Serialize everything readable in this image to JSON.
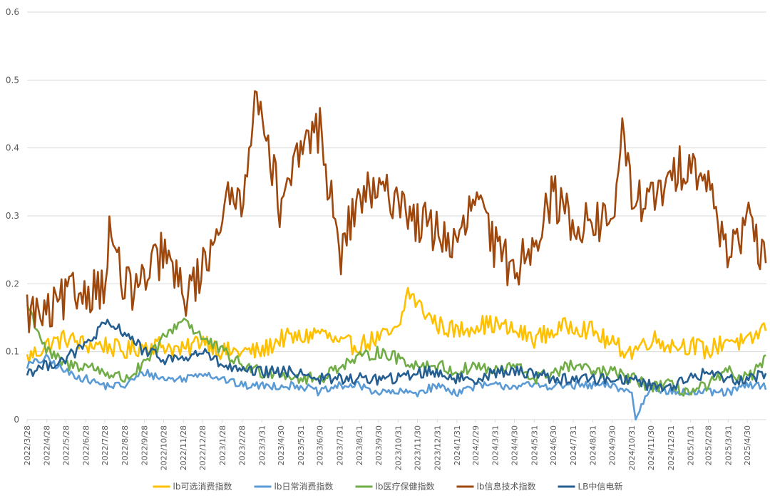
{
  "chart_data": {
    "type": "line",
    "title": "",
    "xlabel": "",
    "ylabel": "",
    "ylim": [
      0,
      0.6
    ],
    "y_ticks": [
      "0",
      "0.1",
      "0.2",
      "0.3",
      "0.4",
      "0.5",
      "0.6"
    ],
    "grid": true,
    "legend_position": "bottom",
    "x_start": "2022/3/28",
    "x_end": "2025/5/30",
    "x_ticks": [
      "2022/3/28",
      "2022/4/28",
      "2022/5/28",
      "2022/6/28",
      "2022/7/28",
      "2022/8/28",
      "2022/9/28",
      "2022/10/28",
      "2022/11/28",
      "2022/12/28",
      "2023/1/28",
      "2023/2/28",
      "2023/3/31",
      "2023/4/30",
      "2023/5/31",
      "2023/6/30",
      "2023/7/31",
      "2023/8/31",
      "2023/9/30",
      "2023/10/31",
      "2023/11/30",
      "2023/12/31",
      "2024/1/31",
      "2024/2/29",
      "2024/3/31",
      "2024/4/30",
      "2024/5/31",
      "2024/6/30",
      "2024/7/31",
      "2024/8/31",
      "2024/9/30",
      "2024/10/31",
      "2024/11/30",
      "2024/12/31",
      "2025/1/31",
      "2025/2/28",
      "2025/3/31",
      "2025/4/30"
    ],
    "series": [
      {
        "name": "lb可选消费指数",
        "color": "#FFC000",
        "points": [
          [
            "2022/3/28",
            0.09
          ],
          [
            "2022/4/28",
            0.11
          ],
          [
            "2022/5/28",
            0.12
          ],
          [
            "2022/6/28",
            0.11
          ],
          [
            "2022/7/28",
            0.11
          ],
          [
            "2022/8/28",
            0.1
          ],
          [
            "2022/9/28",
            0.11
          ],
          [
            "2022/10/28",
            0.11
          ],
          [
            "2022/11/28",
            0.1
          ],
          [
            "2022/12/28",
            0.12
          ],
          [
            "2023/1/28",
            0.1
          ],
          [
            "2023/2/28",
            0.1
          ],
          [
            "2023/3/31",
            0.1
          ],
          [
            "2023/4/30",
            0.12
          ],
          [
            "2023/5/31",
            0.12
          ],
          [
            "2023/6/30",
            0.13
          ],
          [
            "2023/7/31",
            0.11
          ],
          [
            "2023/8/31",
            0.11
          ],
          [
            "2023/9/30",
            0.12
          ],
          [
            "2023/10/31",
            0.13
          ],
          [
            "2023/11/15",
            0.19
          ],
          [
            "2023/11/30",
            0.17
          ],
          [
            "2023/12/31",
            0.14
          ],
          [
            "2024/1/31",
            0.13
          ],
          [
            "2024/2/29",
            0.14
          ],
          [
            "2024/3/31",
            0.14
          ],
          [
            "2024/4/30",
            0.13
          ],
          [
            "2024/5/31",
            0.12
          ],
          [
            "2024/6/30",
            0.13
          ],
          [
            "2024/7/31",
            0.14
          ],
          [
            "2024/8/31",
            0.13
          ],
          [
            "2024/9/30",
            0.11
          ],
          [
            "2024/10/31",
            0.1
          ],
          [
            "2024/11/30",
            0.12
          ],
          [
            "2024/12/31",
            0.11
          ],
          [
            "2025/1/31",
            0.11
          ],
          [
            "2025/2/28",
            0.1
          ],
          [
            "2025/3/31",
            0.12
          ],
          [
            "2025/4/30",
            0.11
          ],
          [
            "2025/5/30",
            0.14
          ]
        ]
      },
      {
        "name": "lb日常消费指数",
        "color": "#5B9BD5",
        "points": [
          [
            "2022/3/28",
            0.08
          ],
          [
            "2022/4/28",
            0.09
          ],
          [
            "2022/5/28",
            0.07
          ],
          [
            "2022/6/28",
            0.06
          ],
          [
            "2022/7/28",
            0.05
          ],
          [
            "2022/8/28",
            0.05
          ],
          [
            "2022/9/28",
            0.07
          ],
          [
            "2022/10/28",
            0.06
          ],
          [
            "2022/11/28",
            0.06
          ],
          [
            "2022/12/28",
            0.07
          ],
          [
            "2023/1/28",
            0.06
          ],
          [
            "2023/2/28",
            0.05
          ],
          [
            "2023/3/31",
            0.05
          ],
          [
            "2023/4/30",
            0.05
          ],
          [
            "2023/5/31",
            0.05
          ],
          [
            "2023/6/30",
            0.04
          ],
          [
            "2023/7/31",
            0.05
          ],
          [
            "2023/8/31",
            0.05
          ],
          [
            "2023/9/30",
            0.04
          ],
          [
            "2023/10/31",
            0.04
          ],
          [
            "2023/11/30",
            0.04
          ],
          [
            "2023/12/31",
            0.05
          ],
          [
            "2024/1/31",
            0.04
          ],
          [
            "2024/2/29",
            0.05
          ],
          [
            "2024/3/31",
            0.05
          ],
          [
            "2024/4/30",
            0.05
          ],
          [
            "2024/5/31",
            0.05
          ],
          [
            "2024/6/30",
            0.05
          ],
          [
            "2024/7/31",
            0.05
          ],
          [
            "2024/8/31",
            0.05
          ],
          [
            "2024/9/30",
            0.05
          ],
          [
            "2024/10/31",
            0.04
          ],
          [
            "2024/11/5",
            0.0
          ],
          [
            "2024/11/30",
            0.05
          ],
          [
            "2024/12/31",
            0.04
          ],
          [
            "2025/1/31",
            0.04
          ],
          [
            "2025/2/28",
            0.04
          ],
          [
            "2025/3/31",
            0.04
          ],
          [
            "2025/4/30",
            0.05
          ],
          [
            "2025/5/30",
            0.05
          ]
        ]
      },
      {
        "name": "lb医疗保健指数",
        "color": "#70AD47",
        "points": [
          [
            "2022/3/28",
            0.17
          ],
          [
            "2022/4/28",
            0.1
          ],
          [
            "2022/5/28",
            0.08
          ],
          [
            "2022/6/28",
            0.08
          ],
          [
            "2022/7/28",
            0.07
          ],
          [
            "2022/8/28",
            0.06
          ],
          [
            "2022/9/28",
            0.08
          ],
          [
            "2022/10/28",
            0.12
          ],
          [
            "2022/11/28",
            0.15
          ],
          [
            "2022/12/28",
            0.12
          ],
          [
            "2023/1/28",
            0.1
          ],
          [
            "2023/2/28",
            0.08
          ],
          [
            "2023/3/31",
            0.07
          ],
          [
            "2023/4/30",
            0.07
          ],
          [
            "2023/5/31",
            0.06
          ],
          [
            "2023/6/30",
            0.06
          ],
          [
            "2023/7/31",
            0.08
          ],
          [
            "2023/8/31",
            0.09
          ],
          [
            "2023/9/30",
            0.1
          ],
          [
            "2023/10/31",
            0.09
          ],
          [
            "2023/11/30",
            0.08
          ],
          [
            "2023/12/31",
            0.08
          ],
          [
            "2024/1/31",
            0.07
          ],
          [
            "2024/2/29",
            0.08
          ],
          [
            "2024/3/31",
            0.07
          ],
          [
            "2024/4/30",
            0.08
          ],
          [
            "2024/5/31",
            0.06
          ],
          [
            "2024/6/30",
            0.07
          ],
          [
            "2024/7/31",
            0.08
          ],
          [
            "2024/8/31",
            0.07
          ],
          [
            "2024/9/30",
            0.07
          ],
          [
            "2024/10/31",
            0.06
          ],
          [
            "2024/11/30",
            0.05
          ],
          [
            "2024/12/31",
            0.05
          ],
          [
            "2025/1/31",
            0.04
          ],
          [
            "2025/2/28",
            0.05
          ],
          [
            "2025/3/31",
            0.07
          ],
          [
            "2025/4/30",
            0.06
          ],
          [
            "2025/5/30",
            0.09
          ]
        ]
      },
      {
        "name": "lb信息技术指数",
        "color": "#9E480E",
        "points": [
          [
            "2022/3/28",
            0.16
          ],
          [
            "2022/4/28",
            0.15
          ],
          [
            "2022/5/28",
            0.18
          ],
          [
            "2022/6/28",
            0.19
          ],
          [
            "2022/7/28",
            0.2
          ],
          [
            "2022/8/5",
            0.28
          ],
          [
            "2022/8/28",
            0.19
          ],
          [
            "2022/9/28",
            0.2
          ],
          [
            "2022/10/28",
            0.25
          ],
          [
            "2022/11/28",
            0.18
          ],
          [
            "2022/12/28",
            0.22
          ],
          [
            "2023/1/28",
            0.31
          ],
          [
            "2023/2/28",
            0.33
          ],
          [
            "2023/3/15",
            0.44
          ],
          [
            "2023/3/31",
            0.47
          ],
          [
            "2023/4/30",
            0.3
          ],
          [
            "2023/5/31",
            0.4
          ],
          [
            "2023/6/30",
            0.43
          ],
          [
            "2023/7/31",
            0.24
          ],
          [
            "2023/8/31",
            0.33
          ],
          [
            "2023/9/30",
            0.33
          ],
          [
            "2023/10/31",
            0.33
          ],
          [
            "2023/11/30",
            0.29
          ],
          [
            "2023/12/31",
            0.28
          ],
          [
            "2024/1/31",
            0.25
          ],
          [
            "2024/2/29",
            0.33
          ],
          [
            "2024/3/31",
            0.25
          ],
          [
            "2024/4/30",
            0.22
          ],
          [
            "2024/5/31",
            0.27
          ],
          [
            "2024/6/30",
            0.33
          ],
          [
            "2024/7/31",
            0.29
          ],
          [
            "2024/8/31",
            0.29
          ],
          [
            "2024/9/30",
            0.29
          ],
          [
            "2024/10/15",
            0.42
          ],
          [
            "2024/10/31",
            0.33
          ],
          [
            "2024/11/30",
            0.32
          ],
          [
            "2024/12/31",
            0.35
          ],
          [
            "2025/1/31",
            0.39
          ],
          [
            "2025/2/28",
            0.34
          ],
          [
            "2025/3/31",
            0.25
          ],
          [
            "2025/4/30",
            0.29
          ],
          [
            "2025/5/30",
            0.22
          ]
        ]
      },
      {
        "name": "LB中信电新",
        "color": "#255E91",
        "points": [
          [
            "2022/3/28",
            0.07
          ],
          [
            "2022/4/28",
            0.08
          ],
          [
            "2022/5/28",
            0.09
          ],
          [
            "2022/6/28",
            0.11
          ],
          [
            "2022/7/28",
            0.14
          ],
          [
            "2022/8/28",
            0.13
          ],
          [
            "2022/9/28",
            0.1
          ],
          [
            "2022/10/28",
            0.09
          ],
          [
            "2022/11/28",
            0.09
          ],
          [
            "2022/12/28",
            0.1
          ],
          [
            "2023/1/28",
            0.08
          ],
          [
            "2023/2/28",
            0.07
          ],
          [
            "2023/3/31",
            0.07
          ],
          [
            "2023/4/30",
            0.07
          ],
          [
            "2023/5/31",
            0.07
          ],
          [
            "2023/6/30",
            0.06
          ],
          [
            "2023/7/31",
            0.06
          ],
          [
            "2023/8/31",
            0.06
          ],
          [
            "2023/9/30",
            0.06
          ],
          [
            "2023/10/31",
            0.06
          ],
          [
            "2023/11/30",
            0.07
          ],
          [
            "2023/12/31",
            0.07
          ],
          [
            "2024/1/31",
            0.06
          ],
          [
            "2024/2/29",
            0.06
          ],
          [
            "2024/3/31",
            0.07
          ],
          [
            "2024/4/30",
            0.07
          ],
          [
            "2024/5/31",
            0.07
          ],
          [
            "2024/6/30",
            0.06
          ],
          [
            "2024/7/31",
            0.06
          ],
          [
            "2024/8/31",
            0.06
          ],
          [
            "2024/9/30",
            0.06
          ],
          [
            "2024/10/31",
            0.06
          ],
          [
            "2024/11/30",
            0.05
          ],
          [
            "2024/12/31",
            0.05
          ],
          [
            "2025/1/31",
            0.06
          ],
          [
            "2025/2/28",
            0.07
          ],
          [
            "2025/3/31",
            0.06
          ],
          [
            "2025/4/30",
            0.06
          ],
          [
            "2025/5/30",
            0.07
          ]
        ]
      }
    ]
  }
}
